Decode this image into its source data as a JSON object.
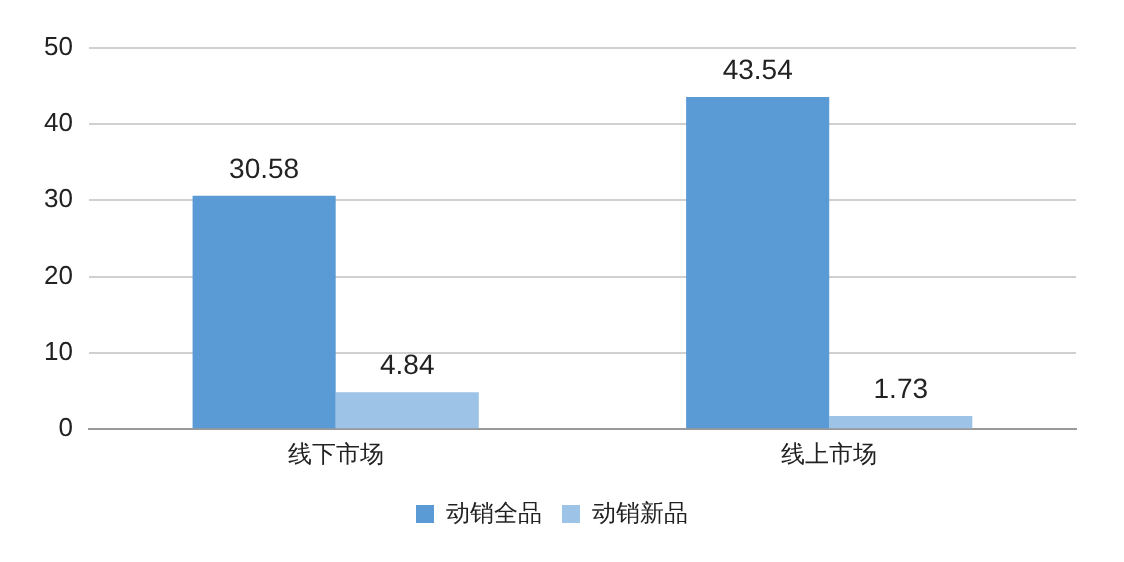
{
  "chart_data": {
    "type": "bar",
    "categories": [
      "线下市场",
      "线上市场"
    ],
    "series": [
      {
        "name": "动销全品",
        "color": "#5b9bd5",
        "values": [
          30.58,
          43.54
        ]
      },
      {
        "name": "动销新品",
        "color": "#9dc3e6",
        "values": [
          4.84,
          1.73
        ]
      }
    ],
    "ylim": [
      0,
      50
    ],
    "yticks": [
      0,
      10,
      20,
      30,
      40,
      50
    ],
    "grid": "y",
    "legend": "bottom",
    "data_labels": true
  }
}
